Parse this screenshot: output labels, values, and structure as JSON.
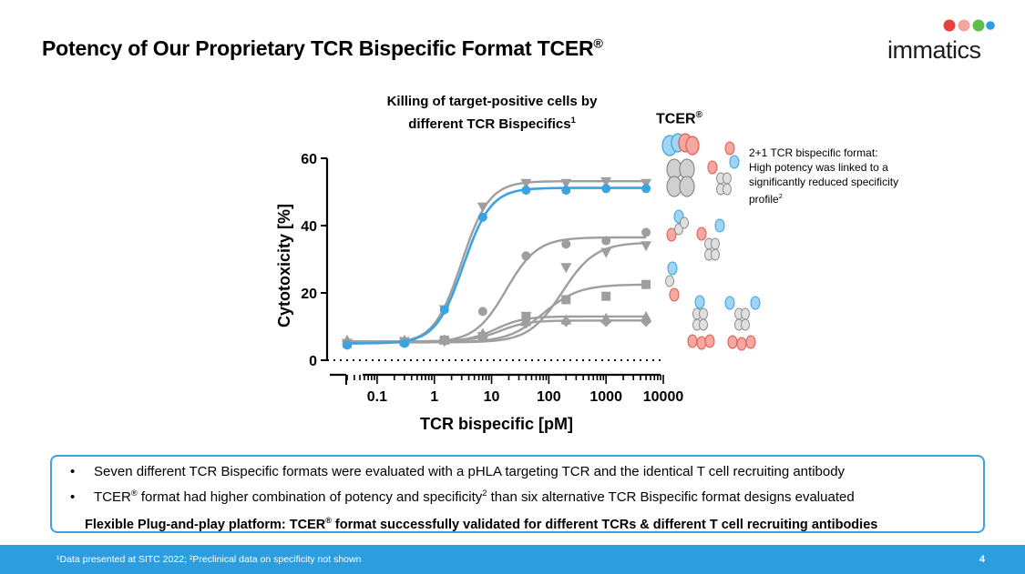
{
  "slide": {
    "title": "Potency of Our Proprietary TCR Bispecific Format TCER®",
    "logo_text": "immatics",
    "page_number": "4",
    "footnote": "¹Data presented at SITC 2022; ²Preclinical data on specificity not shown"
  },
  "chart_data": {
    "type": "scatter",
    "title": "Killing of target-positive cells by different TCR Bispecifics¹",
    "xlabel": "TCR bispecific [pM]",
    "ylabel": "Cytotoxicity [%]",
    "xscale": "log",
    "xlim": [
      0.02,
      10000
    ],
    "ylim": [
      0,
      60
    ],
    "x_ticks": [
      "0.1",
      "1",
      "10",
      "100",
      "1000",
      "10000"
    ],
    "y_ticks": [
      0,
      20,
      40,
      60
    ],
    "zero_dose_point": "0",
    "x": [
      0.03,
      0.3,
      1.5,
      7,
      40,
      200,
      1000,
      5000
    ],
    "series": [
      {
        "color": "#3aa3e2",
        "marker": "circle",
        "highlight": true,
        "values": [
          4.5,
          5,
          15,
          42.5,
          50.5,
          50.5,
          51,
          51
        ],
        "fit": {
          "bottom": 5,
          "top": 51.2,
          "ec50": 3.2,
          "hill": 1.8
        }
      },
      {
        "color": "#9e9e9e",
        "marker": "triangle-down",
        "values": [
          5,
          5.5,
          15,
          45.5,
          52.5,
          52.5,
          53,
          52.5
        ],
        "fit": {
          "bottom": 5,
          "top": 53.2,
          "ec50": 3.0,
          "hill": 1.8
        }
      },
      {
        "color": "#9e9e9e",
        "marker": "circle",
        "values": [
          5,
          5.5,
          6,
          14.5,
          31,
          34.5,
          35.5,
          38
        ],
        "fit": {
          "bottom": 5.3,
          "top": 36.5,
          "ec50": 18,
          "hill": 1.6
        }
      },
      {
        "color": "#9e9e9e",
        "marker": "triangle-down",
        "values": [
          5,
          5.5,
          5.5,
          7,
          13,
          27.5,
          32,
          34
        ],
        "fit": {
          "bottom": 5.3,
          "top": 35,
          "ec50": 170,
          "hill": 1.5
        }
      },
      {
        "color": "#9e9e9e",
        "marker": "square",
        "values": [
          5,
          5.5,
          6,
          7,
          13,
          18,
          19,
          22.5
        ],
        "fit": {
          "bottom": 5.3,
          "top": 22.5,
          "ec50": 80,
          "hill": 1.4
        }
      },
      {
        "color": "#9e9e9e",
        "marker": "triangle",
        "values": [
          6,
          6,
          6,
          8,
          11.5,
          12,
          12.5,
          13
        ],
        "fit": {
          "bottom": 5.6,
          "top": 13,
          "ec50": 12,
          "hill": 1.8
        }
      },
      {
        "color": "#9e9e9e",
        "marker": "diamond",
        "values": [
          5.5,
          5.5,
          6,
          7,
          11,
          11.5,
          11.5,
          11.5
        ],
        "fit": {
          "bottom": 5.6,
          "top": 11.8,
          "ec50": 14,
          "hill": 1.8
        }
      }
    ]
  },
  "diagram": {
    "tcer_label": "TCER®",
    "format_description": "2+1 TCR bispecific format: High potency was linked to a significantly reduced specificity profile²"
  },
  "summary": {
    "bullet_1": "Seven different TCR Bispecific formats were evaluated with a pHLA targeting TCR and the identical T cell recruiting antibody",
    "bullet_2": "TCER® format had higher combination of potency and specificity² than six alternative TCR Bispecific format designs evaluated",
    "highlight": "Flexible Plug-and-play platform: TCER® format successfully validated for different TCRs & different T cell recruiting antibodies"
  }
}
